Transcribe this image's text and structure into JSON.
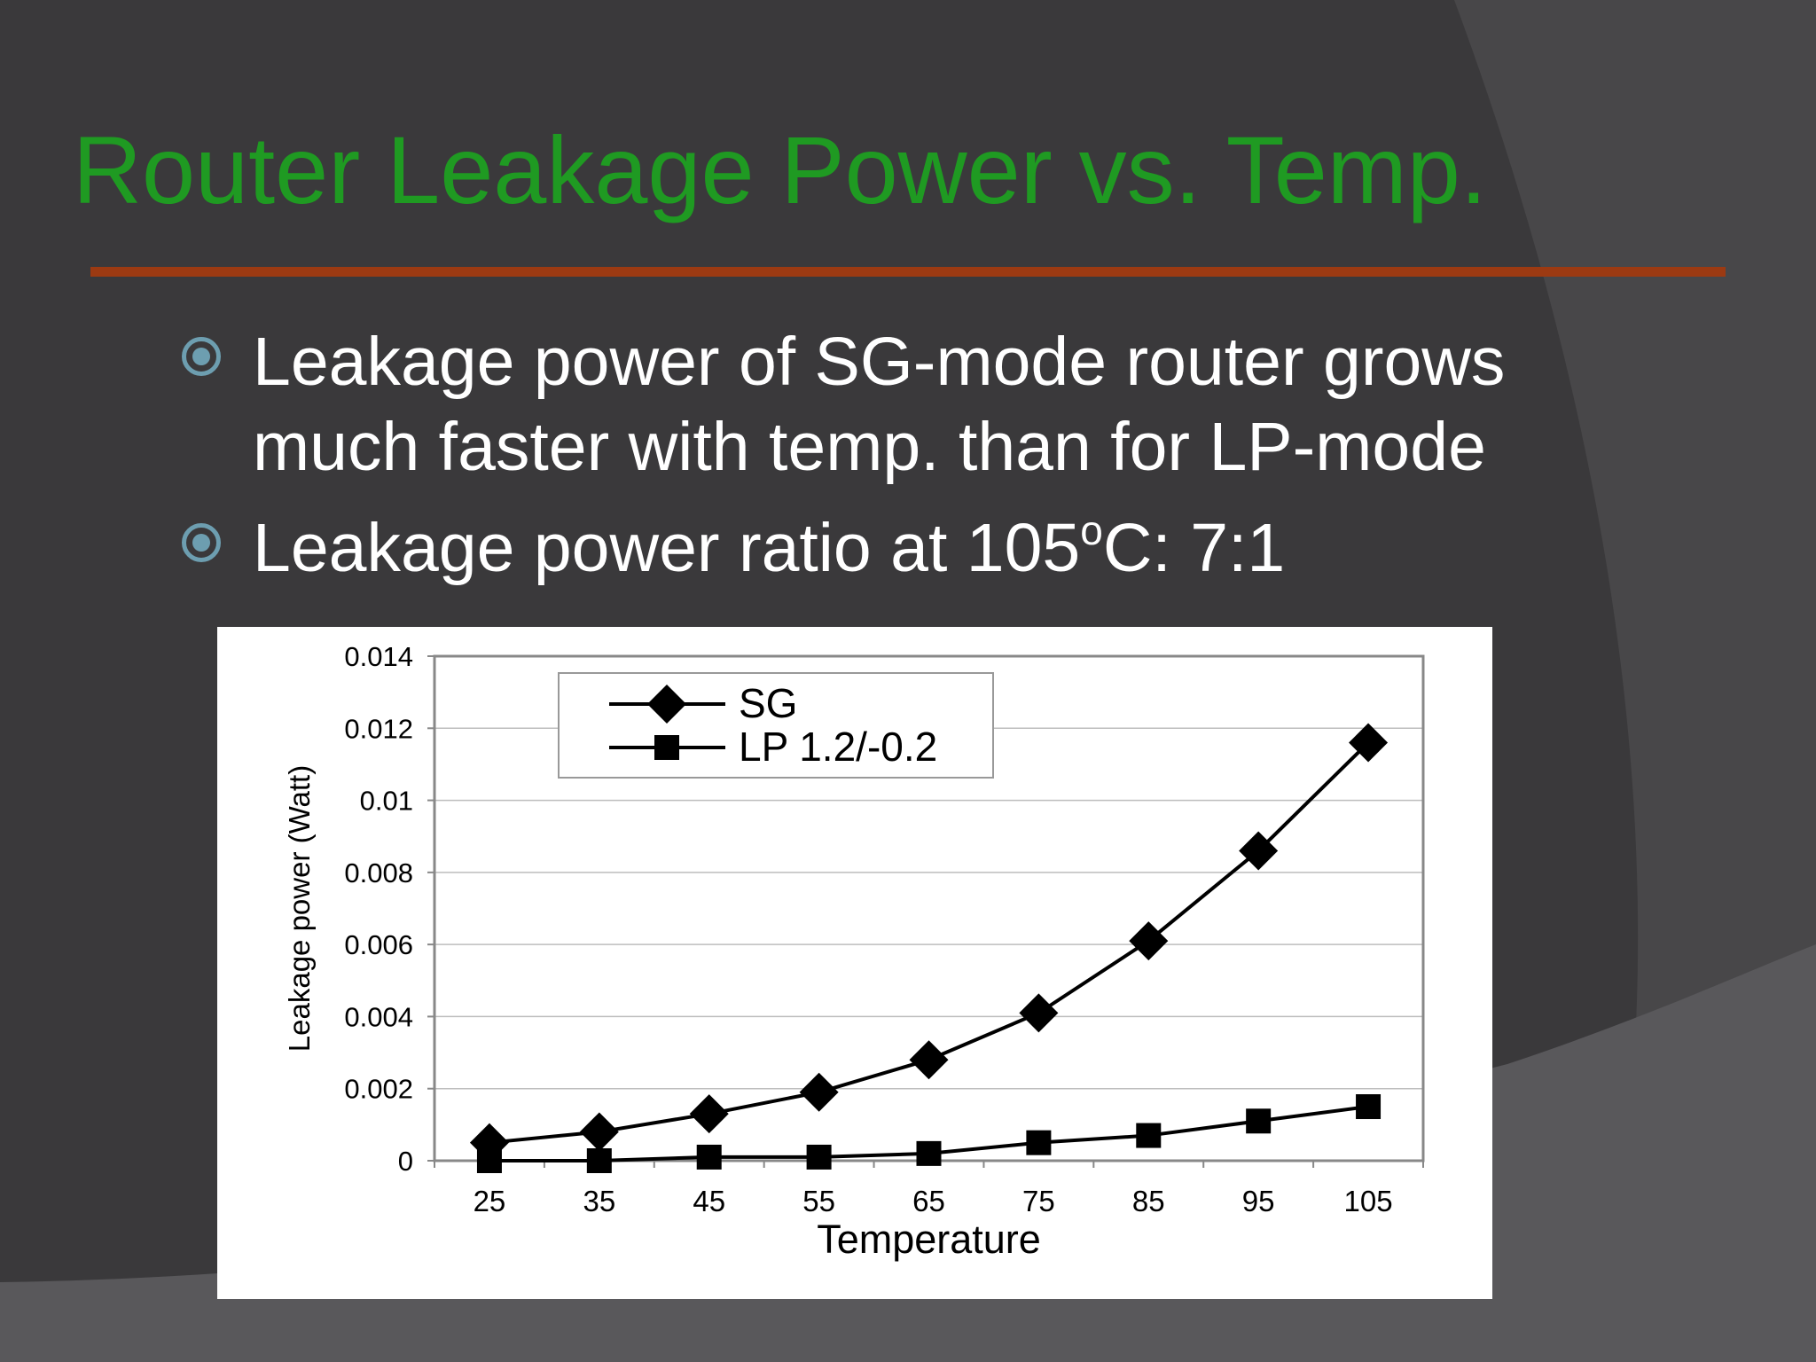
{
  "slide": {
    "title": "Router Leakage Power vs. Temp.",
    "colors": {
      "background": "#3a393b",
      "shape_light": "#484749",
      "shape_lighter": "#59585b",
      "title": "#1f9a22",
      "rule": "#9c3a12",
      "bullet_icon": "#6d9eb0",
      "text": "#ffffff"
    },
    "bullets": [
      {
        "icon": "target-bullet-icon",
        "line1": "Leakage power of SG-mode router grows",
        "line2": "much faster with temp. than for LP-mode"
      },
      {
        "icon": "target-bullet-icon",
        "pre": "Leakage power ratio at 105",
        "sup": "o",
        "post": "C: 7:1"
      }
    ]
  },
  "chart_data": {
    "type": "line",
    "title": "",
    "xlabel": "Temperature",
    "ylabel": "Leakage power (Watt)",
    "x": [
      25,
      35,
      45,
      55,
      65,
      75,
      85,
      95,
      105
    ],
    "x_ticks": [
      "25",
      "35",
      "45",
      "55",
      "65",
      "75",
      "85",
      "95",
      "105"
    ],
    "ylim": [
      0,
      0.014
    ],
    "y_ticks": [
      "0",
      "0.002",
      "0.004",
      "0.006",
      "0.008",
      "0.01",
      "0.012",
      "0.014"
    ],
    "y_tick_values": [
      0,
      0.002,
      0.004,
      0.006,
      0.008,
      0.01,
      0.012,
      0.014
    ],
    "grid": "horizontal",
    "legend": "top-left",
    "series": [
      {
        "name": "SG",
        "marker": "diamond",
        "values": [
          0.0005,
          0.0008,
          0.0013,
          0.0019,
          0.0028,
          0.0041,
          0.0061,
          0.0086,
          0.0116
        ]
      },
      {
        "name": "LP 1.2/-0.2",
        "marker": "square",
        "values": [
          0.0,
          0.0,
          0.0001,
          0.0001,
          0.0002,
          0.0005,
          0.0007,
          0.0011,
          0.0015
        ]
      }
    ]
  }
}
